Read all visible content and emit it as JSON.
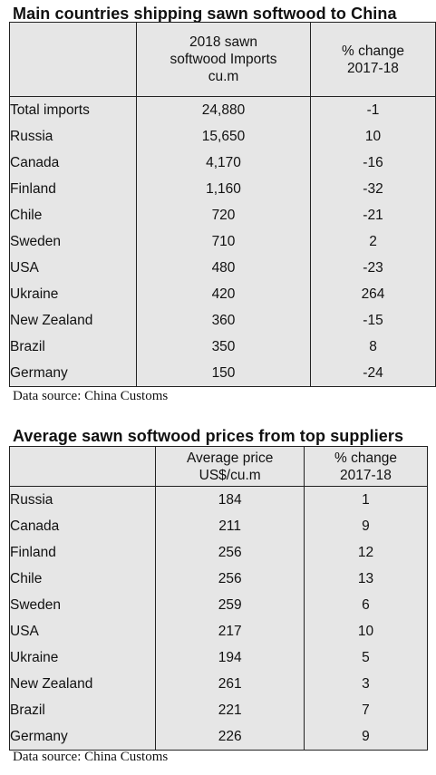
{
  "table1": {
    "title": "Main countries shipping sawn softwood to China",
    "headers": [
      "",
      "2018 sawn softwood Imports cu.m",
      "% change 2017-18"
    ],
    "rows": [
      [
        "Total imports",
        "24,880",
        "-1"
      ],
      [
        "Russia",
        "15,650",
        "10"
      ],
      [
        "Canada",
        "4,170",
        "-16"
      ],
      [
        "Finland",
        "1,160",
        "-32"
      ],
      [
        "Chile",
        "720",
        "-21"
      ],
      [
        "Sweden",
        "710",
        "2"
      ],
      [
        "USA",
        "480",
        "-23"
      ],
      [
        "Ukraine",
        "420",
        "264"
      ],
      [
        "New Zealand",
        "360",
        "-15"
      ],
      [
        "Brazil",
        "350",
        "8"
      ],
      [
        "Germany",
        "150",
        "-24"
      ]
    ],
    "source": "Data source: China Customs"
  },
  "table2": {
    "title": "Average sawn softwood prices from top suppliers",
    "headers": [
      "",
      "Average price US$/cu.m",
      "% change 2017-18"
    ],
    "rows": [
      [
        "Russia",
        "184",
        "1"
      ],
      [
        "Canada",
        "211",
        "9"
      ],
      [
        "Finland",
        "256",
        "12"
      ],
      [
        "Chile",
        "256",
        "13"
      ],
      [
        "Sweden",
        "259",
        "6"
      ],
      [
        "USA",
        "217",
        "10"
      ],
      [
        "Ukraine",
        "194",
        "5"
      ],
      [
        "New Zealand",
        "261",
        "3"
      ],
      [
        "Brazil",
        "221",
        "7"
      ],
      [
        "Germany",
        "226",
        "9"
      ]
    ],
    "source": "Data source: China Customs"
  }
}
